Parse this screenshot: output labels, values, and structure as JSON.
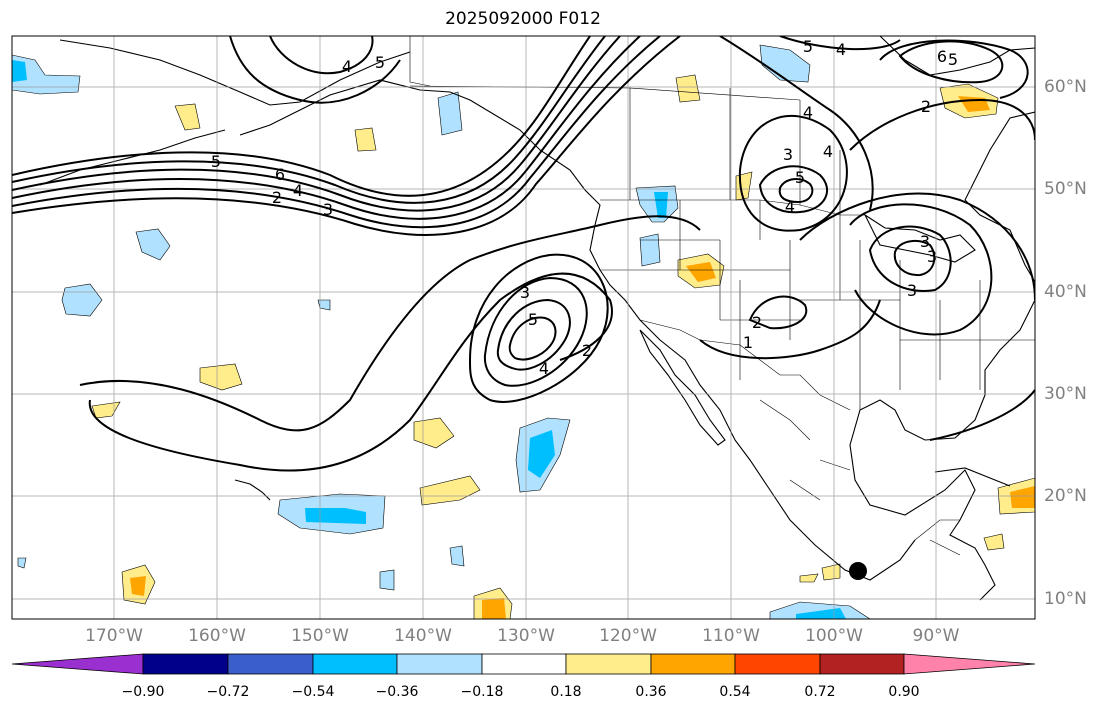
{
  "title": "2025092000 F012",
  "longitude_labels": [
    "170°W",
    "160°W",
    "150°W",
    "140°W",
    "130°W",
    "120°W",
    "110°W",
    "100°W",
    "90°W"
  ],
  "latitude_labels": [
    "60°N",
    "50°N",
    "40°N",
    "30°N",
    "20°N",
    "10°N"
  ],
  "colorbar": {
    "tick_labels": [
      "−0.90",
      "−0.72",
      "−0.54",
      "−0.36",
      "−0.18",
      "0.18",
      "0.36",
      "0.54",
      "0.72",
      "0.90"
    ],
    "colors": [
      "#9b30d0",
      "#00008b",
      "#3a5fcd",
      "#00bfff",
      "#b0e2ff",
      "#ffffff",
      "#ffec8b",
      "#ffa500",
      "#ff4500",
      "#b22222",
      "#ff82ab"
    ]
  },
  "contour_labels": [
    "4",
    "5",
    "5",
    "4",
    "6",
    "5",
    "6",
    "4",
    "2",
    "3",
    "2",
    "3",
    "5",
    "4",
    "5",
    "4",
    "3",
    "5",
    "4",
    "2",
    "2",
    "1",
    "4",
    "3",
    "3",
    "3"
  ],
  "colors": {
    "land_outline": "#000000",
    "grid": "#999999",
    "contour": "#000000",
    "marker": "#000000"
  }
}
